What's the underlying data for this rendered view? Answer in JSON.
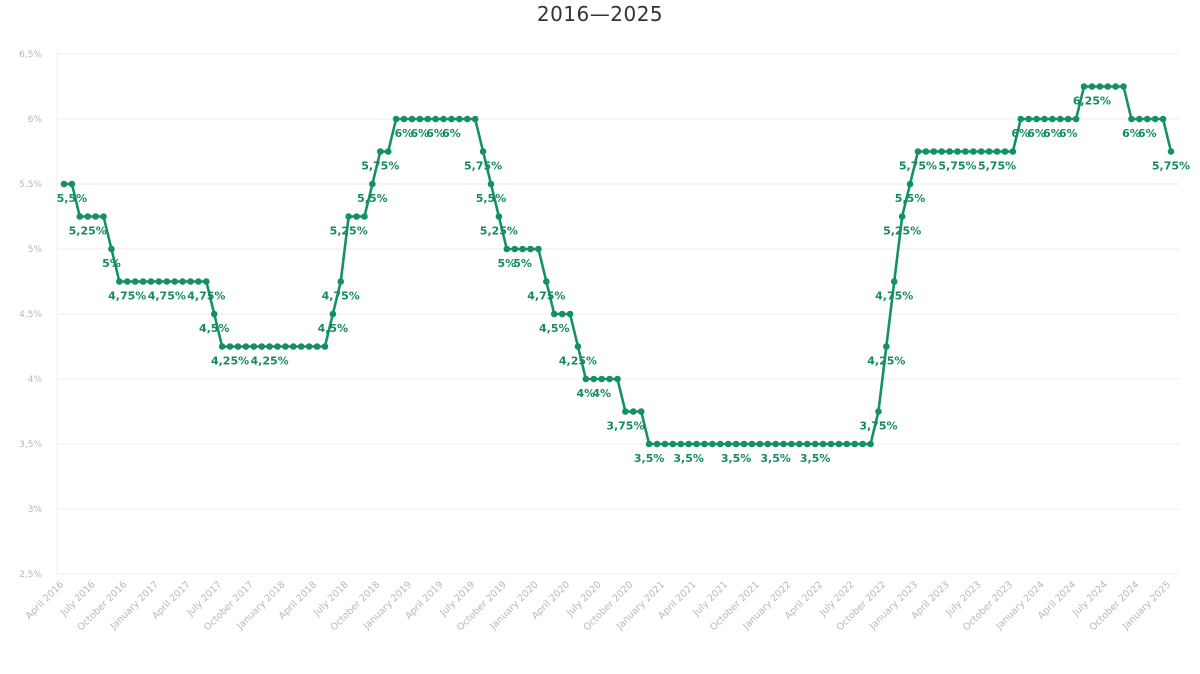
{
  "chart": {
    "title": "2016—2025"
  },
  "chart_data": {
    "type": "line",
    "title": "2016—2025",
    "xlabel": "",
    "ylabel": "",
    "ylim": [
      2.5,
      6.5
    ],
    "grid": true,
    "legend": "none",
    "colors": {
      "series": "#159065",
      "label": "#168a60",
      "grid": "#ececec",
      "tick": "#b8b8b8"
    },
    "y_ticks": [
      "2,5%",
      "3%",
      "3,5%",
      "4%",
      "4,5%",
      "5%",
      "5,5%",
      "6%",
      "6,5%"
    ],
    "x_ticks": [
      "April 2016",
      "July 2016",
      "October 2016",
      "January 2017",
      "April 2017",
      "July 2017",
      "October 2017",
      "January 2018",
      "April 2018",
      "July 2018",
      "October 2018",
      "January 2019",
      "April 2019",
      "July 2019",
      "October 2019",
      "January 2020",
      "April 2020",
      "July 2020",
      "October 2020",
      "January 2021",
      "April 2021",
      "July 2021",
      "October 2021",
      "January 2022",
      "April 2022",
      "July 2022",
      "October 2022",
      "January 2023",
      "April 2023",
      "July 2023",
      "October 2023",
      "January 2024",
      "April 2024",
      "July 2024",
      "October 2024",
      "January 2025"
    ],
    "series": [
      {
        "values": [
          5.5,
          5.5,
          5.25,
          5.25,
          5.25,
          5.25,
          5,
          4.75,
          4.75,
          4.75,
          4.75,
          4.75,
          4.75,
          4.75,
          4.75,
          4.75,
          4.75,
          4.75,
          4.75,
          4.5,
          4.25,
          4.25,
          4.25,
          4.25,
          4.25,
          4.25,
          4.25,
          4.25,
          4.25,
          4.25,
          4.25,
          4.25,
          4.25,
          4.25,
          4.5,
          4.75,
          5.25,
          5.25,
          5.25,
          5.5,
          5.75,
          5.75,
          6,
          6,
          6,
          6,
          6,
          6,
          6,
          6,
          6,
          6,
          6,
          5.75,
          5.5,
          5.25,
          5,
          5,
          5,
          5,
          5,
          4.75,
          4.5,
          4.5,
          4.5,
          4.25,
          4,
          4,
          4,
          4,
          4,
          3.75,
          3.75,
          3.75,
          3.5,
          3.5,
          3.5,
          3.5,
          3.5,
          3.5,
          3.5,
          3.5,
          3.5,
          3.5,
          3.5,
          3.5,
          3.5,
          3.5,
          3.5,
          3.5,
          3.5,
          3.5,
          3.5,
          3.5,
          3.5,
          3.5,
          3.5,
          3.5,
          3.5,
          3.5,
          3.5,
          3.5,
          3.5,
          3.75,
          4.25,
          4.75,
          5.25,
          5.5,
          5.75,
          5.75,
          5.75,
          5.75,
          5.75,
          5.75,
          5.75,
          5.75,
          5.75,
          5.75,
          5.75,
          5.75,
          5.75,
          6,
          6,
          6,
          6,
          6,
          6,
          6,
          6,
          6.25,
          6.25,
          6.25,
          6.25,
          6.25,
          6.25,
          6,
          6,
          6,
          6,
          6,
          5.75
        ]
      }
    ],
    "annotations": [
      {
        "i": 1,
        "text": "5,5%"
      },
      {
        "i": 3,
        "text": "5,25%"
      },
      {
        "i": 6,
        "text": "5%"
      },
      {
        "i": 8,
        "text": "4,75%"
      },
      {
        "i": 13,
        "text": "4,75%"
      },
      {
        "i": 18,
        "text": "4,75%"
      },
      {
        "i": 19,
        "text": "4,5%"
      },
      {
        "i": 21,
        "text": "4,25%"
      },
      {
        "i": 26,
        "text": "4,25%"
      },
      {
        "i": 34,
        "text": "4,5%"
      },
      {
        "i": 35,
        "text": "4,75%"
      },
      {
        "i": 36,
        "text": "5,25%"
      },
      {
        "i": 39,
        "text": "5,5%"
      },
      {
        "i": 40,
        "text": "5,75%"
      },
      {
        "i": 43,
        "text": "6%"
      },
      {
        "i": 45,
        "text": "6%"
      },
      {
        "i": 47,
        "text": "6%"
      },
      {
        "i": 49,
        "text": "6%"
      },
      {
        "i": 53,
        "text": "5,75%"
      },
      {
        "i": 54,
        "text": "5,5%"
      },
      {
        "i": 55,
        "text": "5,25%"
      },
      {
        "i": 56,
        "text": "5%"
      },
      {
        "i": 58,
        "text": "5%"
      },
      {
        "i": 61,
        "text": "4,75%"
      },
      {
        "i": 62,
        "text": "4,5%"
      },
      {
        "i": 65,
        "text": "4,25%"
      },
      {
        "i": 66,
        "text": "4%"
      },
      {
        "i": 68,
        "text": "4%"
      },
      {
        "i": 71,
        "text": "3,75%"
      },
      {
        "i": 74,
        "text": "3,5%"
      },
      {
        "i": 79,
        "text": "3,5%"
      },
      {
        "i": 85,
        "text": "3,5%"
      },
      {
        "i": 90,
        "text": "3,5%"
      },
      {
        "i": 95,
        "text": "3,5%"
      },
      {
        "i": 103,
        "text": "3,75%"
      },
      {
        "i": 104,
        "text": "4,25%"
      },
      {
        "i": 105,
        "text": "4,75%"
      },
      {
        "i": 106,
        "text": "5,25%"
      },
      {
        "i": 107,
        "text": "5,5%"
      },
      {
        "i": 108,
        "text": "5,75%"
      },
      {
        "i": 113,
        "text": "5,75%"
      },
      {
        "i": 118,
        "text": "5,75%"
      },
      {
        "i": 121,
        "text": "6%"
      },
      {
        "i": 123,
        "text": "6%"
      },
      {
        "i": 125,
        "text": "6%"
      },
      {
        "i": 127,
        "text": "6%"
      },
      {
        "i": 130,
        "text": "6,25%"
      },
      {
        "i": 135,
        "text": "6%"
      },
      {
        "i": 137,
        "text": "6%"
      },
      {
        "i": 140,
        "text": "5,75%"
      }
    ]
  }
}
